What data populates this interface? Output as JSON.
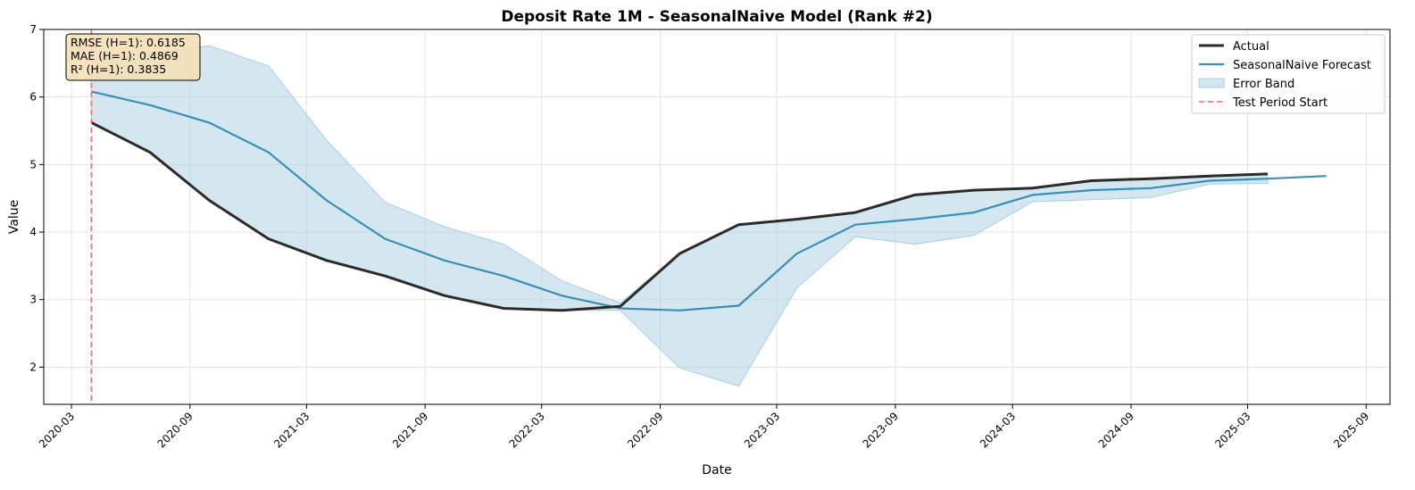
{
  "chart_data": {
    "type": "line",
    "title": "Deposit Rate 1M - SeasonalNaive Model (Rank #2)",
    "xlabel": "Date",
    "ylabel": "Value",
    "xlim": [
      "2020-01-18",
      "2025-10-08"
    ],
    "ylim": [
      1.45,
      7.0
    ],
    "x_ticks": [
      "2020-03",
      "2020-09",
      "2021-03",
      "2021-09",
      "2022-03",
      "2022-09",
      "2023-03",
      "2023-09",
      "2024-03",
      "2024-09",
      "2025-03",
      "2025-09"
    ],
    "y_ticks": [
      2,
      3,
      4,
      5,
      6,
      7
    ],
    "grid": true,
    "legend_position": "top-right",
    "series": [
      {
        "name": "Actual",
        "color": "#2b2b2b",
        "x": [
          "2020-04-01",
          "2020-07-01",
          "2020-10-01",
          "2021-01-01",
          "2021-04-01",
          "2021-07-01",
          "2021-10-01",
          "2022-01-01",
          "2022-04-01",
          "2022-07-01",
          "2022-10-01",
          "2023-01-01",
          "2023-04-01",
          "2023-07-01",
          "2023-10-01",
          "2024-01-01",
          "2024-04-01",
          "2024-07-01",
          "2024-10-01",
          "2025-01-01",
          "2025-04-01"
        ],
        "values": [
          5.62,
          5.18,
          4.47,
          3.9,
          3.58,
          3.35,
          3.06,
          2.87,
          2.84,
          2.9,
          3.68,
          4.11,
          4.19,
          4.29,
          4.55,
          4.62,
          4.65,
          4.76,
          4.79,
          4.83,
          4.86
        ]
      },
      {
        "name": "SeasonalNaive Forecast",
        "color": "#3a8fb7",
        "x": [
          "2020-04-01",
          "2020-07-01",
          "2020-10-01",
          "2021-01-01",
          "2021-04-01",
          "2021-07-01",
          "2021-10-01",
          "2022-01-01",
          "2022-04-01",
          "2022-07-01",
          "2022-10-01",
          "2023-01-01",
          "2023-04-01",
          "2023-07-01",
          "2023-10-01",
          "2024-01-01",
          "2024-04-01",
          "2024-07-01",
          "2024-10-01",
          "2025-01-01",
          "2025-04-01",
          "2025-07-01"
        ],
        "values": [
          6.08,
          5.88,
          5.62,
          5.18,
          4.47,
          3.9,
          3.58,
          3.35,
          3.06,
          2.87,
          2.84,
          2.91,
          3.68,
          4.11,
          4.19,
          4.29,
          4.55,
          4.62,
          4.65,
          4.76,
          4.79,
          4.83
        ]
      }
    ],
    "band": {
      "name": "Error Band",
      "color": "#a9cde0",
      "x": [
        "2020-04-01",
        "2020-07-01",
        "2020-10-01",
        "2021-01-01",
        "2021-04-01",
        "2021-07-01",
        "2021-10-01",
        "2022-01-01",
        "2022-04-01",
        "2022-07-01",
        "2022-10-01",
        "2023-01-01",
        "2023-04-01",
        "2023-07-01",
        "2023-10-01",
        "2024-01-01",
        "2024-04-01",
        "2024-07-01",
        "2024-10-01",
        "2025-01-01",
        "2025-04-01"
      ],
      "upper": [
        6.54,
        6.64,
        6.76,
        6.46,
        5.36,
        4.44,
        4.08,
        3.82,
        3.28,
        2.95,
        3.68,
        4.11,
        4.19,
        4.29,
        4.55,
        4.62,
        4.65,
        4.76,
        4.79,
        4.83,
        4.86
      ],
      "lower": [
        5.62,
        5.18,
        4.47,
        3.9,
        3.58,
        3.35,
        3.06,
        2.87,
        2.84,
        2.84,
        1.99,
        1.72,
        3.17,
        3.93,
        3.82,
        3.95,
        4.45,
        4.48,
        4.51,
        4.71,
        4.72
      ]
    },
    "vline": {
      "name": "Test Period Start",
      "x": "2020-04-01",
      "color": "#f06a6a"
    },
    "stats_box": [
      "RMSE (H=1): 0.6185",
      "MAE (H=1): 0.4869",
      "R² (H=1): 0.3835"
    ],
    "legend": [
      "Actual",
      "SeasonalNaive Forecast",
      "Error Band",
      "Test Period Start"
    ]
  }
}
